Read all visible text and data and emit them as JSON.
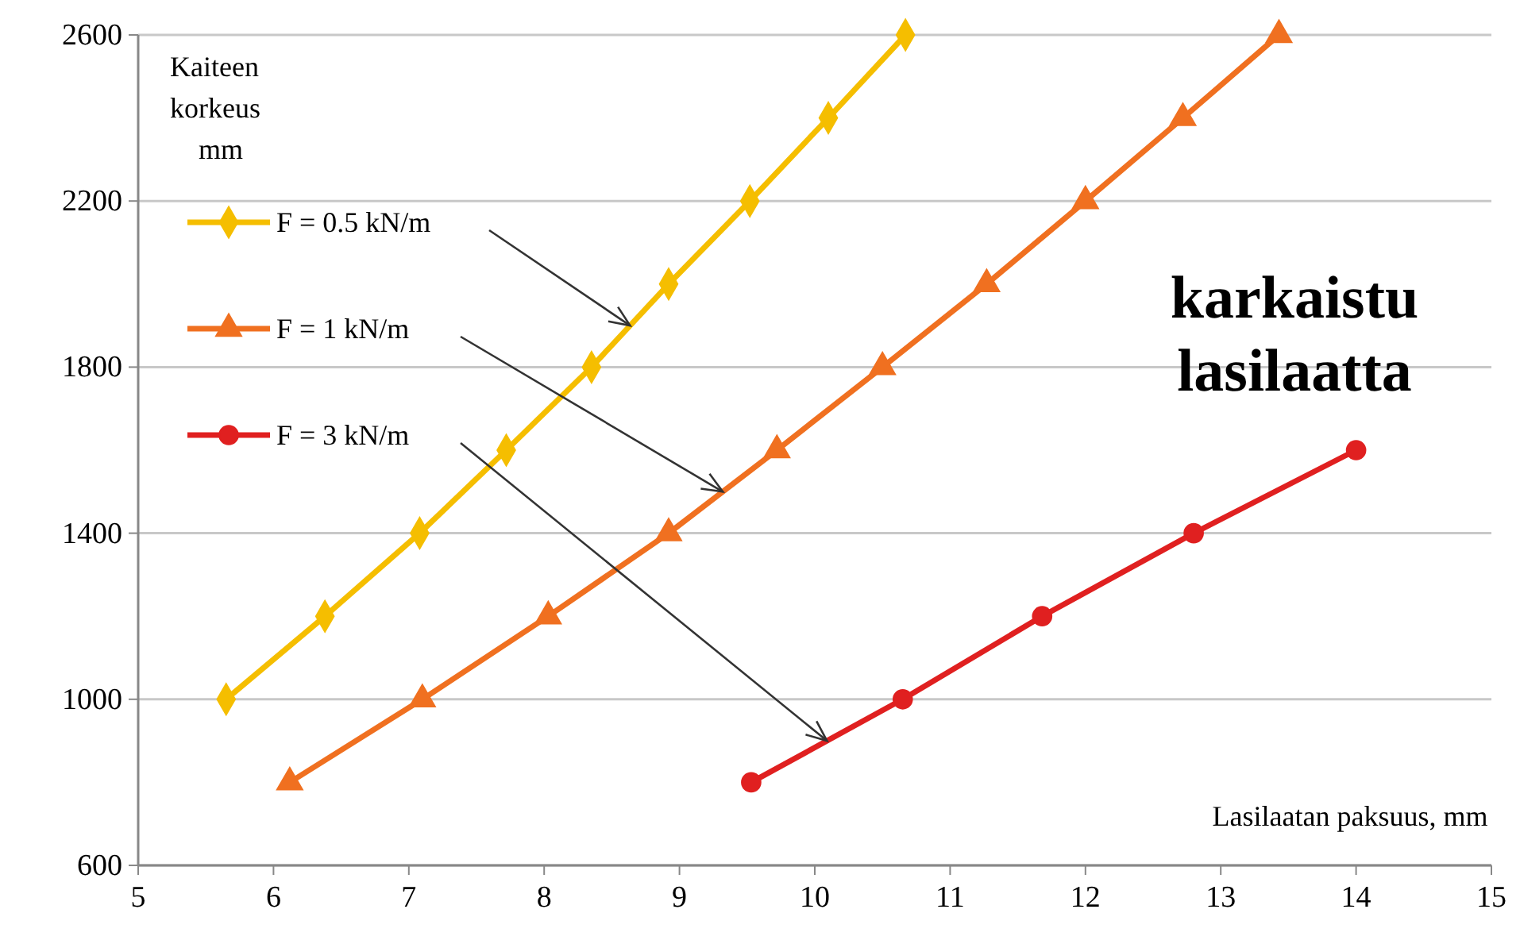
{
  "chart_data": {
    "type": "line",
    "xlabel": "Lasilaatan paksuus, mm",
    "ylabel": "Kaiteen korkeus mm",
    "annotations": [
      "karkaistu lasilaatta"
    ],
    "xlim": [
      5,
      15
    ],
    "ylim": [
      600,
      2600
    ],
    "xticks": [
      5,
      6,
      7,
      8,
      9,
      10,
      11,
      12,
      13,
      14,
      15
    ],
    "yticks": [
      600,
      1000,
      1400,
      1800,
      2200,
      2600
    ],
    "grid": "y",
    "legend": "top left",
    "line_style": "solid",
    "series": [
      {
        "name": "F = 0.5 kN/m",
        "color": "#f5be00",
        "marker": "diamond",
        "x": [
          5.65,
          6.38,
          7.08,
          7.72,
          8.35,
          8.92,
          9.52,
          10.1,
          10.67
        ],
        "values": [
          1000,
          1200,
          1400,
          1600,
          1800,
          2000,
          2200,
          2400,
          2600
        ]
      },
      {
        "name": "F = 1 kN/m",
        "color": "#f07020",
        "marker": "triangle",
        "x": [
          6.12,
          7.1,
          8.03,
          8.92,
          9.72,
          10.5,
          11.27,
          12.0,
          12.72,
          13.43
        ],
        "values": [
          800,
          1000,
          1200,
          1400,
          1600,
          1800,
          2000,
          2200,
          2400,
          2600
        ]
      },
      {
        "name": "F = 3 kN/m",
        "color": "#e02020",
        "marker": "circle",
        "x": [
          9.53,
          10.65,
          11.68,
          12.8,
          14.0
        ],
        "values": [
          800,
          1000,
          1200,
          1400,
          1600
        ]
      }
    ]
  }
}
